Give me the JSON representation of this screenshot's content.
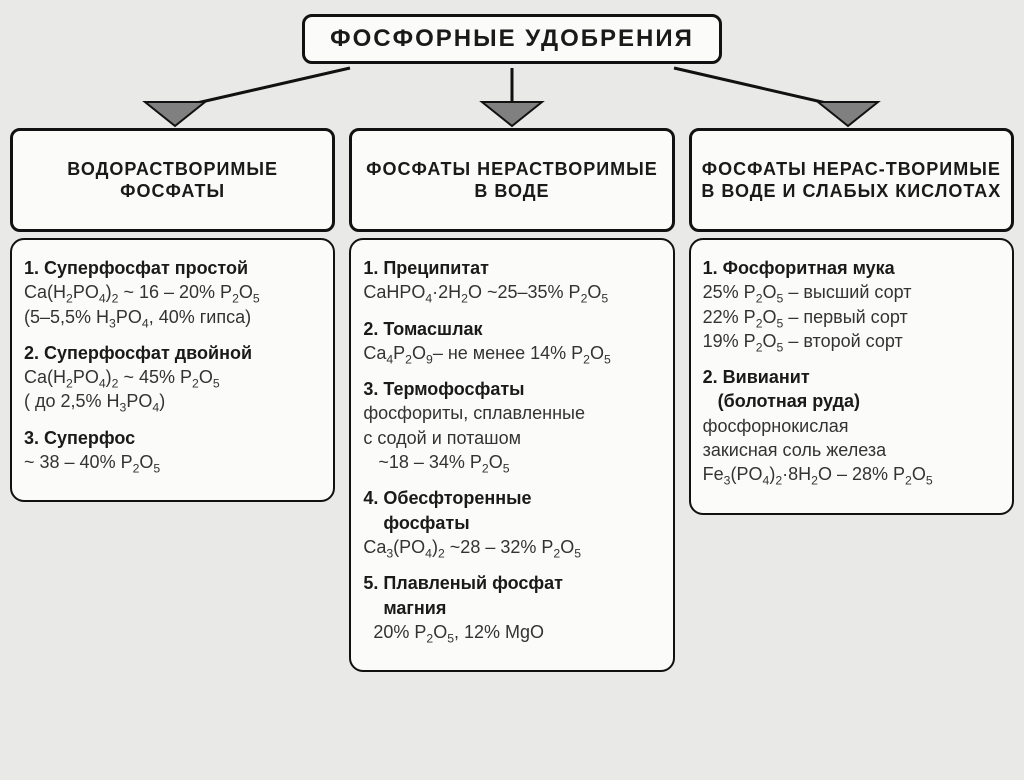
{
  "type": "tree",
  "background_color": "#e9e9e7",
  "box_background": "#fbfbf9",
  "border_color": "#111111",
  "arrow_fill": "#808080",
  "font_family": "Arial",
  "root": {
    "label": "ФОСФОРНЫЕ  УДОБРЕНИЯ",
    "font_size": 24,
    "font_weight": 900
  },
  "columns": [
    {
      "heading": "ВОДОРАСТВОРИМЫЕ ФОСФАТЫ",
      "items": [
        {
          "title": "1. Суперфосфат простой",
          "body_html": "Ca(H<sub>2</sub>PO<sub>4</sub>)<sub>2</sub> ~ 16 – 20% P<sub>2</sub>O<sub>5</sub><br>(5–5,5% H<sub>3</sub>PO<sub>4</sub>, 40% гипса)"
        },
        {
          "title": "2. Суперфосфат  двойной",
          "body_html": "Ca(H<sub>2</sub>PO<sub>4</sub>)<sub>2</sub> ~ 45% P<sub>2</sub>O<sub>5</sub><br>( до 2,5% H<sub>3</sub>PO<sub>4</sub>)"
        },
        {
          "title": "3. Суперфос",
          "body_html": "~ 38 – 40% P<sub>2</sub>O<sub>5</sub>"
        }
      ]
    },
    {
      "heading": "ФОСФАТЫ НЕРАСТВОРИМЫЕ В  ВОДЕ",
      "items": [
        {
          "title": "1. Преципитат",
          "body_html": "CaHPO<sub>4</sub>·2H<sub>2</sub>O ~25–35% P<sub>2</sub>O<sub>5</sub>"
        },
        {
          "title": "2. Томасшлак",
          "body_html": "Ca<sub>4</sub>P<sub>2</sub>O<sub>9</sub>– не менее 14% P<sub>2</sub>O<sub>5</sub>"
        },
        {
          "title": "3. Термофосфаты",
          "body_html": "фосфориты, сплавленные<br>с  содой  и  поташом<br>&nbsp;&nbsp;&nbsp;~18 – 34% P<sub>2</sub>O<sub>5</sub>"
        },
        {
          "title": "4. Обесфторенные<br>&nbsp;&nbsp;&nbsp;&nbsp;фосфаты",
          "body_html": "Ca<sub>3</sub>(PO<sub>4</sub>)<sub>2</sub>  ~28 – 32% P<sub>2</sub>O<sub>5</sub>"
        },
        {
          "title": "5. Плавленый фосфат<br>&nbsp;&nbsp;&nbsp;&nbsp;магния",
          "body_html": "&nbsp;&nbsp;20% P<sub>2</sub>O<sub>5</sub>,  12% MgO"
        }
      ]
    },
    {
      "heading": "ФОСФАТЫ  НЕРАС-ТВОРИМЫЕ  В  ВОДЕ И  СЛАБЫХ КИСЛОТАХ",
      "items": [
        {
          "title": "1. Фосфоритная мука",
          "body_html": "25% P<sub>2</sub>O<sub>5</sub> – высший сорт<br>22% P<sub>2</sub>O<sub>5</sub> – первый сорт<br>19% P<sub>2</sub>O<sub>5</sub> – второй  сорт"
        },
        {
          "title": "2. Вивианит<br>&nbsp;&nbsp;&nbsp;(болотная руда)",
          "body_html": "фосфорнокислая<br>закисная соль  железа<br>Fe<sub>3</sub>(PO<sub>4</sub>)<sub>2</sub>·8H<sub>2</sub>O – 28% P<sub>2</sub>O<sub>5</sub>"
        }
      ]
    }
  ],
  "heading_font_size": 18,
  "body_font_size": 18
}
